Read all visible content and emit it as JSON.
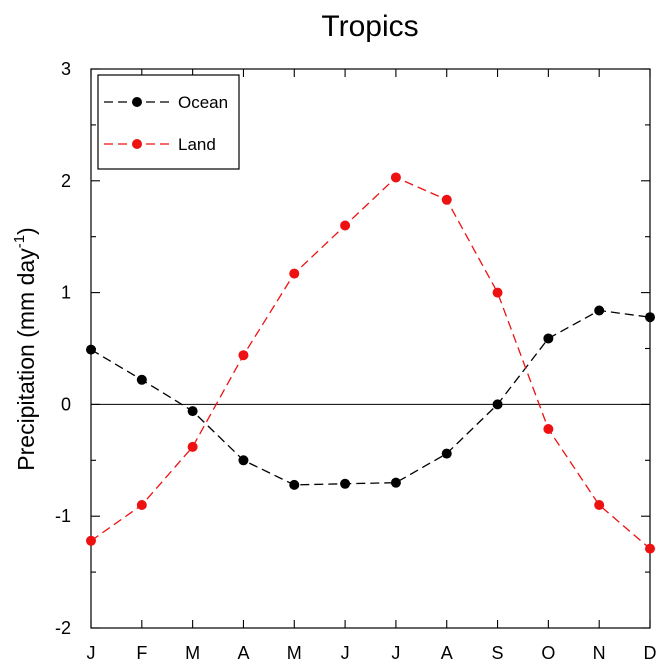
{
  "chart_data": {
    "type": "line",
    "title": "Tropics",
    "xlabel": "",
    "ylabel": "Precipitation (mm day",
    "ylabel_sup": "-1",
    "ylabel_close": ")",
    "categories": [
      "J",
      "F",
      "M",
      "A",
      "M",
      "J",
      "J",
      "A",
      "S",
      "O",
      "N",
      "D"
    ],
    "ylim": [
      -2,
      3
    ],
    "yticks": [
      -2,
      -1,
      0,
      1,
      2,
      3
    ],
    "ytick_labels": [
      "-2",
      "-1",
      "0",
      "1",
      "2",
      "3"
    ],
    "zero_line": true,
    "grid": false,
    "legend_position": "top-left",
    "series": [
      {
        "name": "Ocean",
        "color": "#000000",
        "linestyle": "dashed",
        "marker": "circle",
        "values": [
          0.49,
          0.22,
          -0.06,
          -0.5,
          -0.72,
          -0.71,
          -0.7,
          -0.44,
          0.0,
          0.59,
          0.84,
          0.78
        ]
      },
      {
        "name": "Land",
        "color": "#ee1111",
        "linestyle": "dashed",
        "marker": "circle",
        "values": [
          -1.22,
          -0.9,
          -0.38,
          0.44,
          1.17,
          1.6,
          2.03,
          1.83,
          1.0,
          -0.22,
          -0.9,
          -1.29
        ]
      }
    ]
  }
}
